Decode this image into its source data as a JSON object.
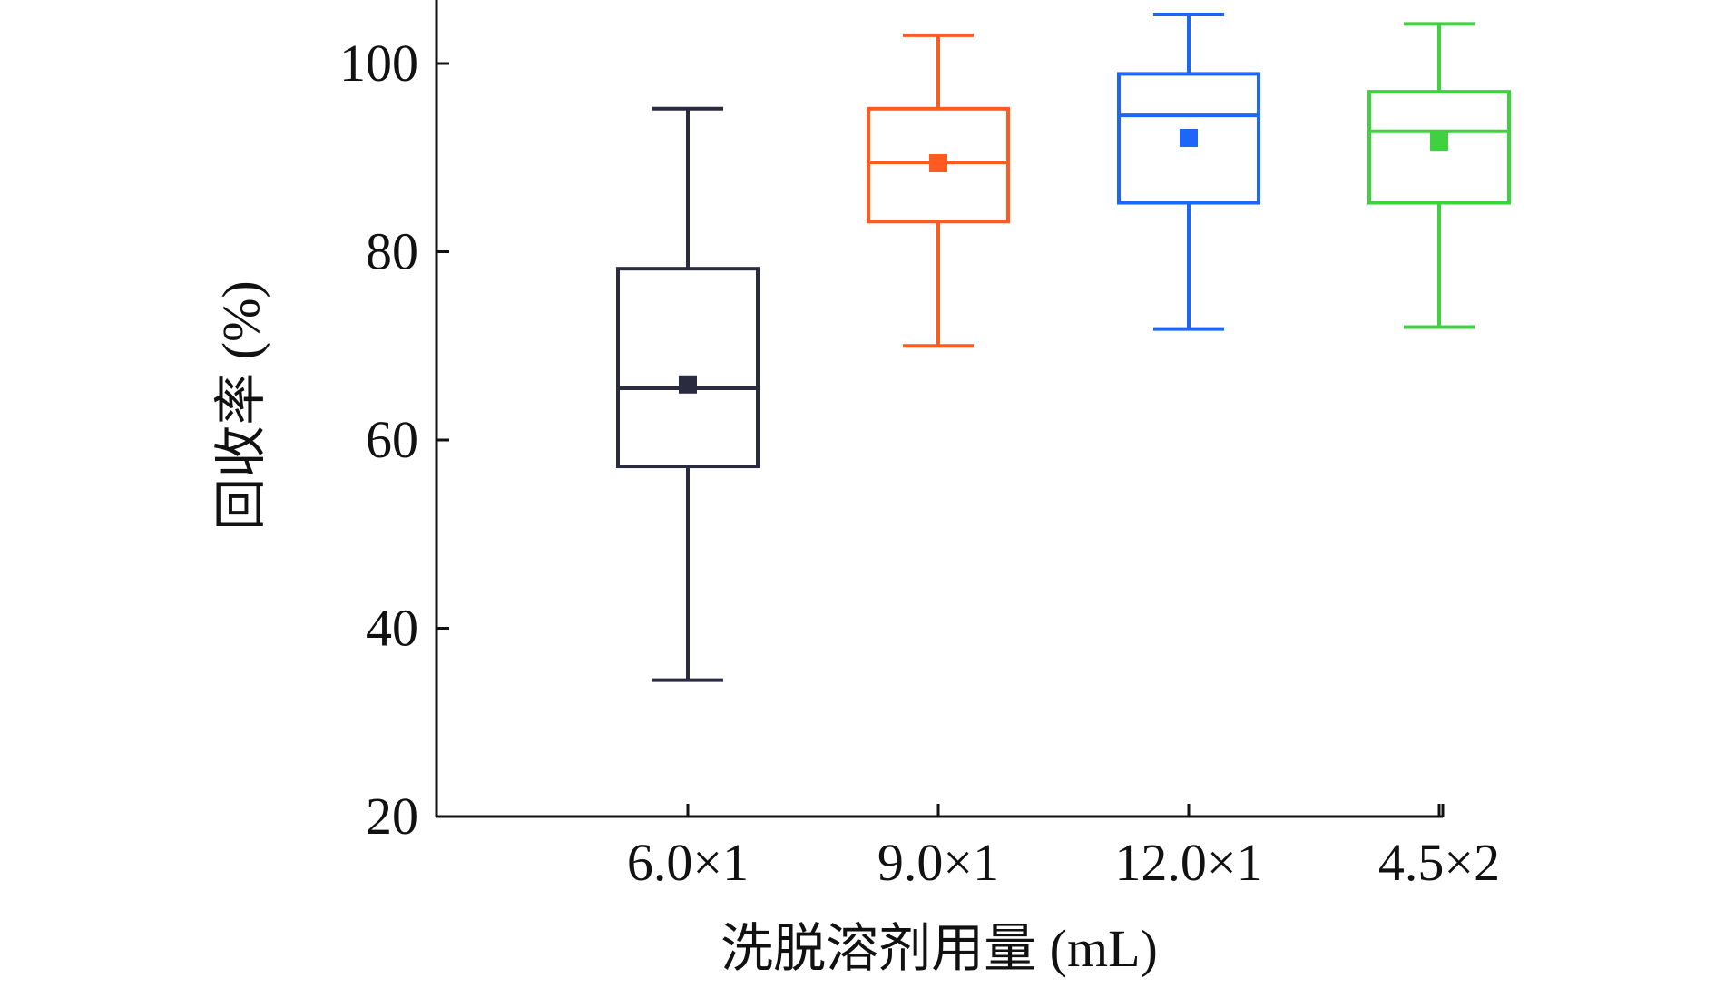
{
  "chart_data": {
    "type": "box",
    "title": "",
    "xlabel": "洗脱溶剂用量 (mL)",
    "ylabel": "回收率 (%)",
    "ylim": [
      20,
      106
    ],
    "yticks": [
      20,
      40,
      60,
      80,
      100
    ],
    "grid": false,
    "categories": [
      "6.0×1",
      "9.0×1",
      "12.0×1",
      "4.5×2"
    ],
    "boxes": [
      {
        "category": "6.0×1",
        "whisker_min": 34.5,
        "q1": 57.2,
        "median": 65.5,
        "q3": 78.2,
        "whisker_max": 95.2,
        "mean": 65.9,
        "color": "#2b2b40"
      },
      {
        "category": "9.0×1",
        "whisker_min": 70.0,
        "q1": 83.2,
        "median": 89.5,
        "q3": 95.2,
        "whisker_max": 103.0,
        "mean": 89.4,
        "color": "#ff5a1f"
      },
      {
        "category": "12.0×1",
        "whisker_min": 71.8,
        "q1": 85.2,
        "median": 94.5,
        "q3": 98.9,
        "whisker_max": 105.2,
        "mean": 92.1,
        "color": "#1e66f5"
      },
      {
        "category": "4.5×2",
        "whisker_min": 72.0,
        "q1": 85.2,
        "median": 92.8,
        "q3": 97.0,
        "whisker_max": 104.2,
        "mean": 91.7,
        "color": "#3fd13f"
      }
    ]
  }
}
